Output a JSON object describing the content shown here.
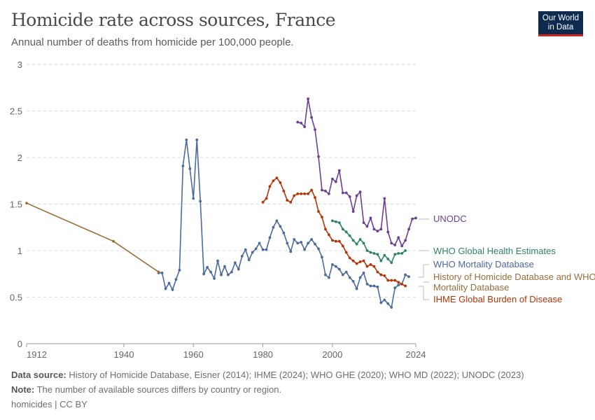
{
  "header": {
    "title": "Homicide rate across sources, France",
    "subtitle": "Annual number of deaths from homicide per 100,000 people.",
    "logo": "Our World in Data"
  },
  "footer": {
    "source_label": "Data source:",
    "source_text": "History of Homicide Database, Eisner (2014); IHME (2024); WHO GHE (2020); WHO MD (2022); UNODC (2023)",
    "note_label": "Note:",
    "note_text": "The number of available sources differs by country or region.",
    "license": "homicides | CC BY"
  },
  "chart_data": {
    "type": "line",
    "title": "Homicide rate across sources, France",
    "ylim": [
      0,
      3
    ],
    "xlim": [
      1912,
      2024
    ],
    "yticks": [
      0,
      0.5,
      1,
      1.5,
      2,
      2.5,
      3
    ],
    "xticks": [
      1912,
      1940,
      1960,
      1980,
      2000,
      2024
    ],
    "grid": true,
    "legend": "right-labels",
    "series": [
      {
        "name": "UNODC",
        "color": "#6d3e91",
        "start": 1990,
        "values": [
          2.38,
          2.37,
          2.33,
          2.63,
          2.43,
          2.3,
          2.01,
          1.65,
          1.64,
          1.61,
          1.77,
          1.74,
          1.86,
          1.62,
          1.62,
          1.58,
          1.42,
          1.59,
          1.63,
          1.3,
          1.26,
          1.35,
          1.23,
          1.21,
          1.23,
          1.56,
          1.2,
          1.08,
          1.06,
          1.14,
          1.05,
          1.11,
          1.23,
          1.34,
          1.35
        ]
      },
      {
        "name": "WHO Global Health Estimates",
        "color": "#2c8465",
        "start": 2000,
        "values": [
          1.32,
          1.31,
          1.3,
          1.23,
          1.2,
          1.16,
          1.11,
          1.07,
          1.12,
          1.08,
          1.0,
          0.98,
          0.97,
          0.96,
          0.89,
          0.95,
          0.91,
          0.87,
          0.96,
          0.97,
          0.97,
          1.0
        ]
      },
      {
        "name": "WHO Mortality Database",
        "color": "#4c6a9c",
        "start": 1950,
        "values": [
          0.76,
          0.76,
          0.59,
          0.65,
          0.58,
          0.69,
          0.79,
          1.91,
          2.19,
          1.88,
          1.56,
          2.19,
          1.53,
          0.75,
          0.82,
          0.77,
          0.7,
          0.89,
          0.74,
          0.83,
          0.74,
          0.77,
          0.87,
          0.8,
          0.94,
          1.01,
          0.9,
          0.98,
          1.02,
          1.08,
          1.01,
          1.01,
          1.14,
          1.25,
          1.32,
          1.26,
          1.19,
          1.08,
          0.99,
          1.12,
          1.08,
          1.09,
          1.01,
          1.08,
          1.12,
          1.07,
          1.02,
          0.93,
          0.74,
          0.71,
          0.85,
          0.83,
          0.8,
          0.74,
          0.77,
          0.71,
          0.67,
          0.59,
          0.71,
          0.76,
          0.64,
          0.62,
          0.62,
          0.61,
          0.44,
          0.47,
          0.43,
          0.39,
          0.6,
          0.63,
          0.64,
          0.74,
          0.72
        ]
      },
      {
        "name": "History of Homicide Database and WHO Mortality Database",
        "color": "#986d39",
        "points": [
          [
            1912,
            1.51
          ],
          [
            1937,
            1.1
          ],
          [
            1950,
            0.77
          ]
        ]
      },
      {
        "name": "IHME Global Burden of Disease",
        "color": "#b13507",
        "start": 1980,
        "values": [
          1.52,
          1.56,
          1.69,
          1.75,
          1.78,
          1.73,
          1.64,
          1.54,
          1.52,
          1.59,
          1.61,
          1.61,
          1.61,
          1.61,
          1.65,
          1.57,
          1.42,
          1.36,
          1.23,
          1.17,
          1.11,
          1.1,
          1.1,
          1.05,
          0.98,
          0.92,
          0.89,
          0.86,
          0.88,
          0.89,
          0.83,
          0.85,
          0.83,
          0.77,
          0.74,
          0.73,
          0.68,
          0.68,
          0.68,
          0.66,
          0.64,
          0.62
        ]
      }
    ]
  }
}
